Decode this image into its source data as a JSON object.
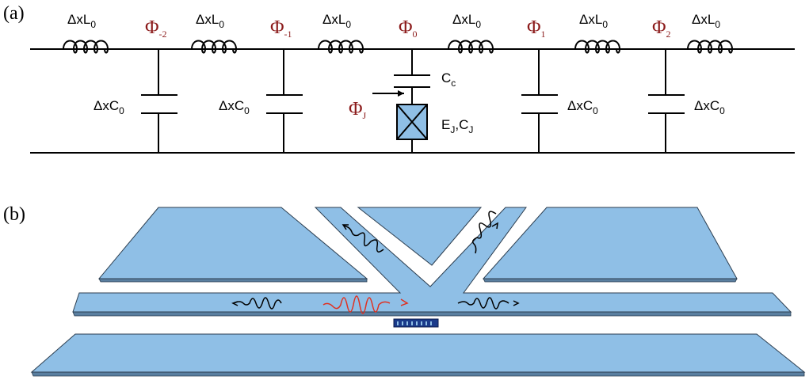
{
  "panel_a": {
    "label": "(a)",
    "inductors": [
      {
        "base": "ΔxL",
        "sub": "0"
      },
      {
        "base": "ΔxL",
        "sub": "0"
      },
      {
        "base": "ΔxL",
        "sub": "0"
      },
      {
        "base": "ΔxL",
        "sub": "0"
      },
      {
        "base": "ΔxL",
        "sub": "0"
      },
      {
        "base": "ΔxL",
        "sub": "0"
      }
    ],
    "nodes": [
      {
        "base": "Φ",
        "sub": "-2"
      },
      {
        "base": "Φ",
        "sub": "-1"
      },
      {
        "base": "Φ",
        "sub": "0"
      },
      {
        "base": "Φ",
        "sub": "1"
      },
      {
        "base": "Φ",
        "sub": "2"
      }
    ],
    "capacitors": [
      {
        "base": "ΔxC",
        "sub": "0"
      },
      {
        "base": "ΔxC",
        "sub": "0"
      },
      {
        "base": "ΔxC",
        "sub": "0"
      },
      {
        "base": "ΔxC",
        "sub": "0"
      }
    ],
    "coupling_capacitor": {
      "base": "C",
      "sub": "c"
    },
    "junction_flux": {
      "base": "Φ",
      "sub": "J"
    },
    "junction": [
      {
        "base": "E",
        "sub": "J"
      },
      {
        "base": ",C",
        "sub": "J"
      }
    ]
  },
  "panel_b": {
    "label": "(b)"
  }
}
